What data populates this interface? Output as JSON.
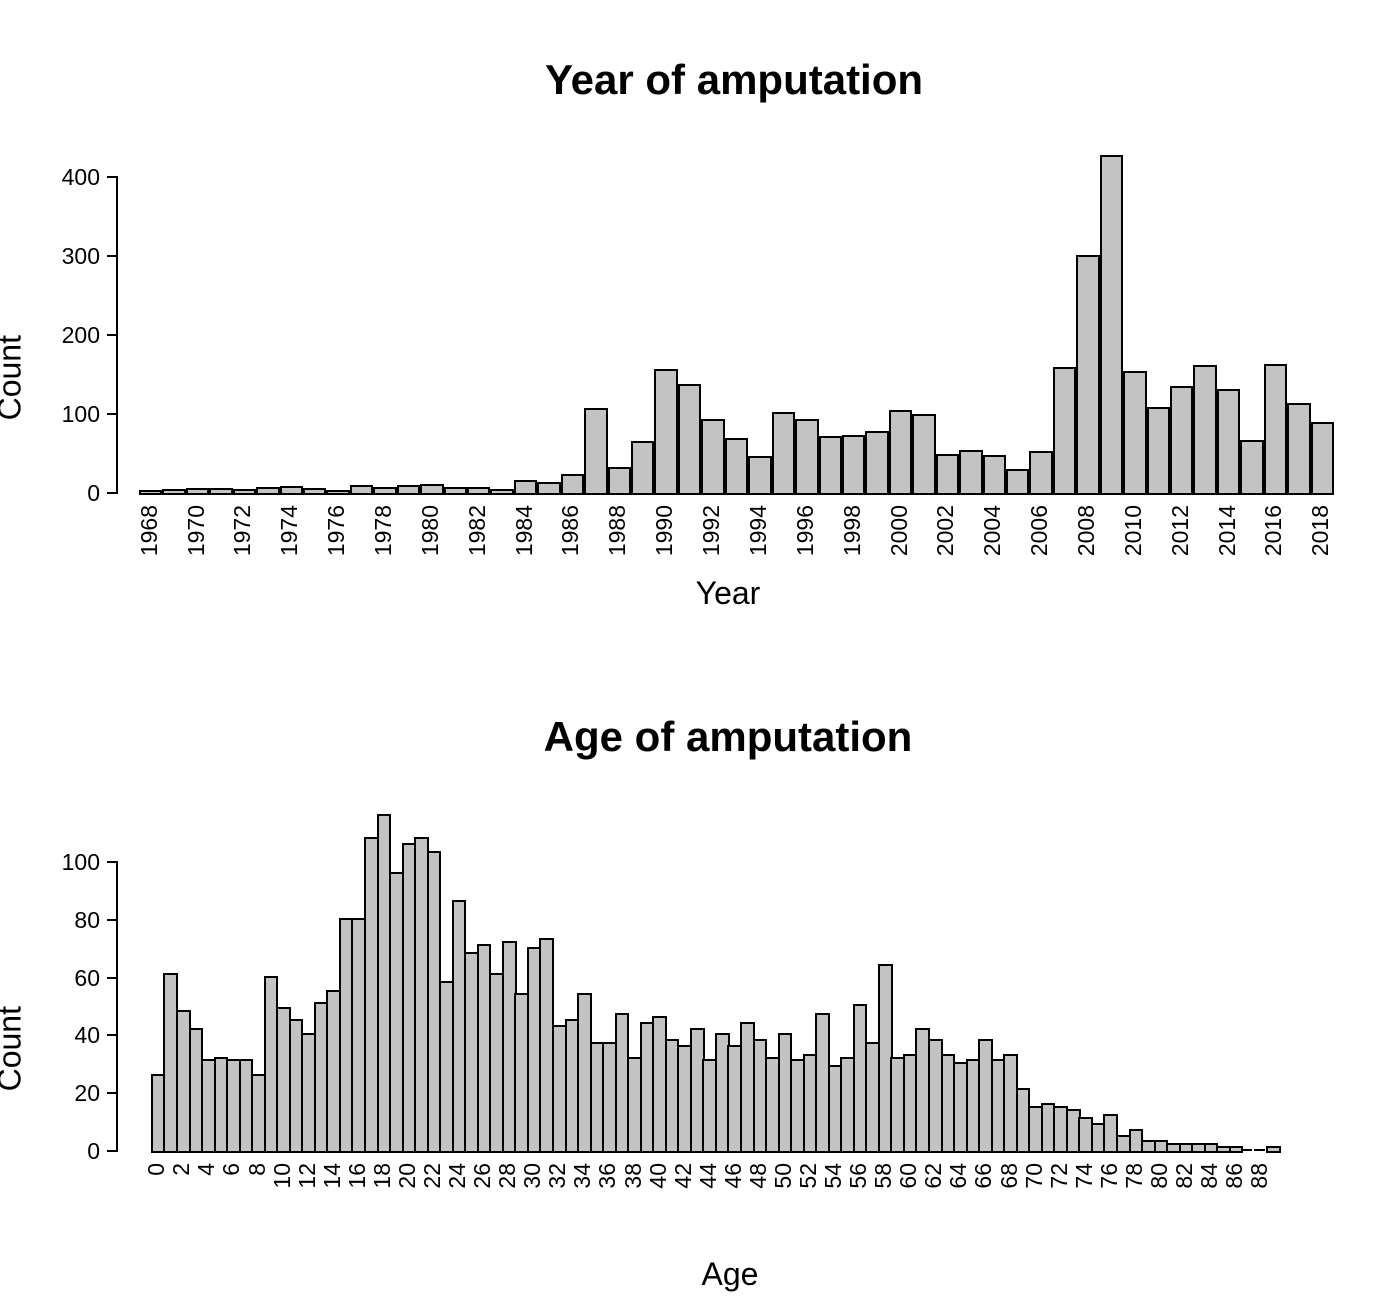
{
  "figure": {
    "background": "#ffffff",
    "text_color": "#000000",
    "bar_fill": "#c3c3c3",
    "bar_border": "#000000"
  },
  "chart_data": [
    {
      "type": "bar",
      "title": "Year of amputation",
      "xlabel": "Year",
      "ylabel": "Count",
      "grid": false,
      "legend": "none",
      "ylim": [
        0,
        430
      ],
      "y_ticks": [
        0,
        100,
        200,
        300,
        400
      ],
      "categories": [
        1968,
        1969,
        1970,
        1971,
        1972,
        1973,
        1974,
        1975,
        1976,
        1977,
        1978,
        1979,
        1980,
        1981,
        1982,
        1983,
        1984,
        1985,
        1986,
        1987,
        1988,
        1989,
        1990,
        1991,
        1992,
        1993,
        1994,
        1995,
        1996,
        1997,
        1998,
        1999,
        2000,
        2001,
        2002,
        2003,
        2004,
        2005,
        2006,
        2007,
        2008,
        2009,
        2010,
        2011,
        2012,
        2013,
        2014,
        2015,
        2016,
        2017,
        2018
      ],
      "values": [
        1,
        2,
        4,
        4,
        3,
        5,
        6,
        4,
        1,
        7,
        5,
        8,
        9,
        5,
        5,
        2,
        14,
        11,
        22,
        105,
        30,
        63,
        154,
        135,
        91,
        67,
        44,
        100,
        91,
        69,
        71,
        76,
        103,
        98,
        47,
        52,
        46,
        28,
        50,
        157,
        299,
        425,
        152,
        106,
        133,
        159,
        129,
        64,
        161,
        111,
        87
      ],
      "x_tick_labels": [
        "1968",
        "1970",
        "1972",
        "1974",
        "1976",
        "1978",
        "1980",
        "1982",
        "1984",
        "1986",
        "1988",
        "1990",
        "1992",
        "1994",
        "1996",
        "1998",
        "2000",
        "2002",
        "2004",
        "2006",
        "2008",
        "2010",
        "2012",
        "2014",
        "2016",
        "2018"
      ],
      "x_tick_every": 2
    },
    {
      "type": "bar",
      "title": "Age of amputation",
      "xlabel": "Age",
      "ylabel": "Count",
      "grid": false,
      "legend": "none",
      "ylim": [
        0,
        120
      ],
      "y_ticks": [
        0,
        20,
        40,
        60,
        80,
        100
      ],
      "categories": [
        0,
        1,
        2,
        3,
        4,
        5,
        6,
        7,
        8,
        9,
        10,
        11,
        12,
        13,
        14,
        15,
        16,
        17,
        18,
        19,
        20,
        21,
        22,
        23,
        24,
        25,
        26,
        27,
        28,
        29,
        30,
        31,
        32,
        33,
        34,
        35,
        36,
        37,
        38,
        39,
        40,
        41,
        42,
        43,
        44,
        45,
        46,
        47,
        48,
        49,
        50,
        51,
        52,
        53,
        54,
        55,
        56,
        57,
        58,
        59,
        60,
        61,
        62,
        63,
        64,
        65,
        66,
        67,
        68,
        69,
        70,
        71,
        72,
        73,
        74,
        75,
        76,
        77,
        78,
        79,
        80,
        81,
        82,
        83,
        84,
        85,
        86,
        87,
        88,
        89
      ],
      "values": [
        26,
        61,
        48,
        42,
        31,
        32,
        31,
        31,
        26,
        60,
        49,
        45,
        40,
        51,
        55,
        80,
        80,
        108,
        116,
        96,
        106,
        108,
        103,
        58,
        86,
        68,
        71,
        61,
        72,
        54,
        70,
        73,
        43,
        45,
        54,
        37,
        37,
        47,
        32,
        44,
        46,
        38,
        36,
        42,
        31,
        40,
        36,
        44,
        38,
        32,
        40,
        31,
        33,
        47,
        29,
        32,
        50,
        37,
        64,
        32,
        33,
        42,
        38,
        33,
        30,
        31,
        38,
        31,
        33,
        21,
        15,
        16,
        15,
        14,
        11,
        9,
        12,
        5,
        7,
        3,
        3,
        2,
        2,
        2,
        2,
        1,
        1,
        0,
        0,
        1
      ],
      "x_tick_labels": [
        "0",
        "2",
        "4",
        "6",
        "8",
        "10",
        "12",
        "14",
        "16",
        "18",
        "20",
        "22",
        "24",
        "26",
        "28",
        "30",
        "32",
        "34",
        "36",
        "38",
        "40",
        "42",
        "44",
        "46",
        "48",
        "50",
        "52",
        "54",
        "56",
        "58",
        "60",
        "62",
        "64",
        "66",
        "68",
        "70",
        "72",
        "74",
        "76",
        "78",
        "80",
        "82",
        "84",
        "86",
        "88"
      ],
      "x_tick_every": 2
    }
  ]
}
